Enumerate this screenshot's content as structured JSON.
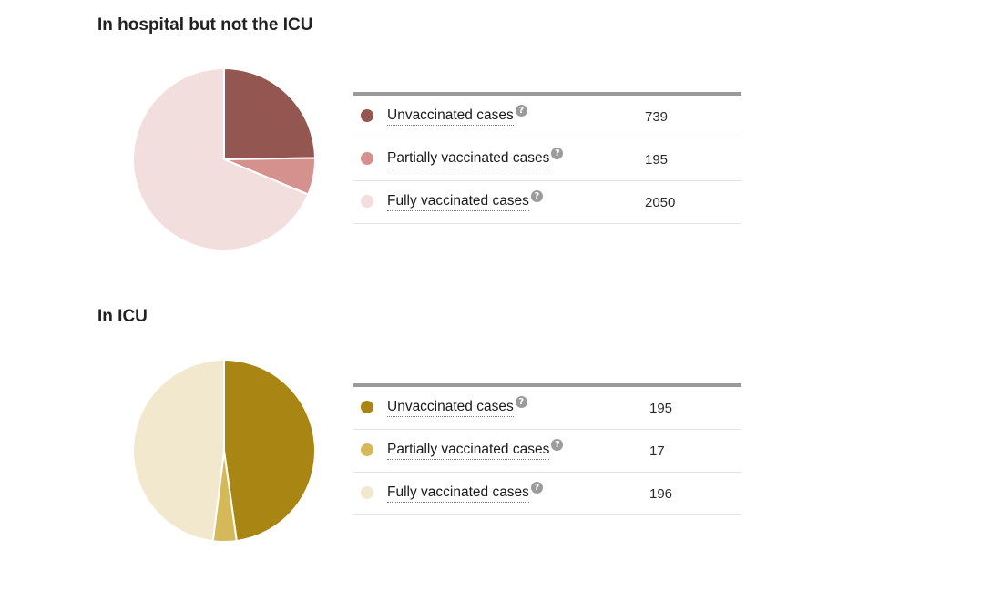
{
  "colors": {
    "hospital": [
      "#935650",
      "#d4918d",
      "#f2dedd"
    ],
    "icu": [
      "#a98513",
      "#d5b958",
      "#f2e8ce"
    ]
  },
  "help_icon_glyph": "?",
  "sections": [
    {
      "title": "In hospital but not the ICU",
      "rows": [
        {
          "label": "Unvaccinated cases",
          "value": "739"
        },
        {
          "label": "Partially vaccinated cases",
          "value": "195"
        },
        {
          "label": "Fully vaccinated cases",
          "value": "2050"
        }
      ]
    },
    {
      "title": "In ICU",
      "rows": [
        {
          "label": "Unvaccinated cases",
          "value": "195"
        },
        {
          "label": "Partially vaccinated cases",
          "value": "17"
        },
        {
          "label": "Fully vaccinated cases",
          "value": "196"
        }
      ]
    }
  ],
  "chart_data": [
    {
      "type": "pie",
      "title": "In hospital but not the ICU",
      "categories": [
        "Unvaccinated cases",
        "Partially vaccinated cases",
        "Fully vaccinated cases"
      ],
      "values": [
        739,
        195,
        2050
      ],
      "colors": [
        "#935650",
        "#d4918d",
        "#f2dedd"
      ],
      "start": "12 o'clock",
      "direction": "clockwise"
    },
    {
      "type": "pie",
      "title": "In ICU",
      "categories": [
        "Unvaccinated cases",
        "Partially vaccinated cases",
        "Fully vaccinated cases"
      ],
      "values": [
        195,
        17,
        196
      ],
      "colors": [
        "#a98513",
        "#d5b958",
        "#f2e8ce"
      ],
      "start": "12 o'clock",
      "direction": "clockwise"
    }
  ]
}
